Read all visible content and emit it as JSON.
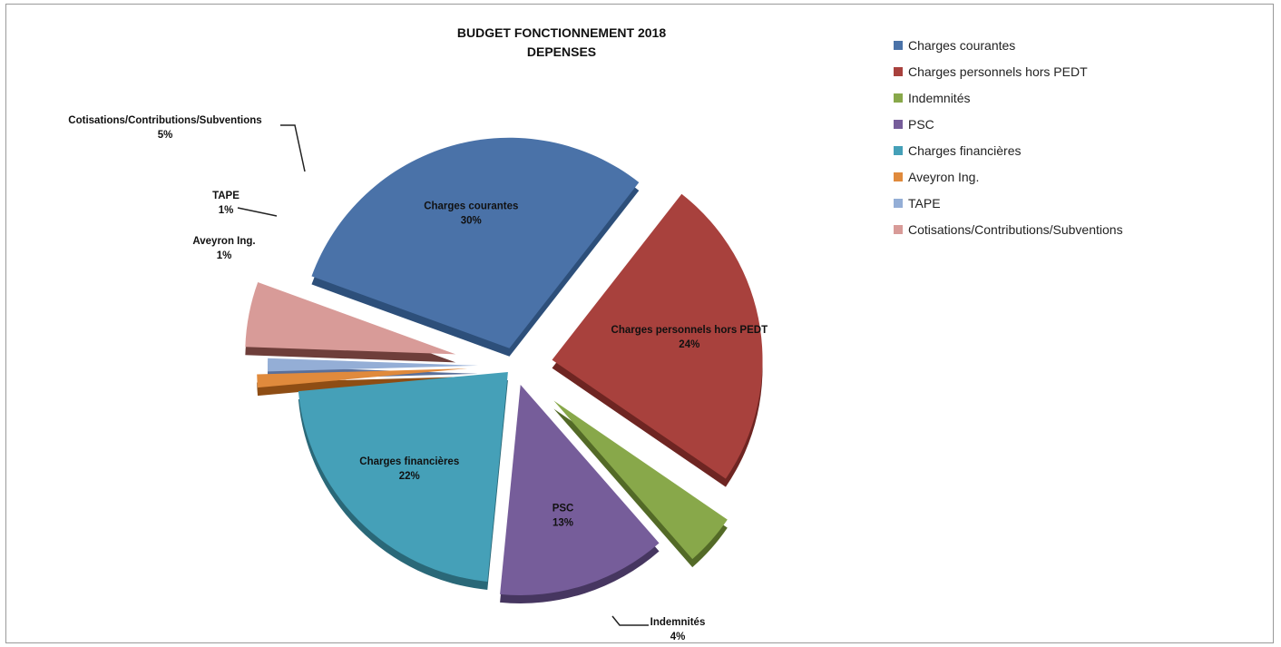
{
  "chart_data": {
    "type": "pie",
    "title_lines": [
      "BUDGET FONCTIONNEMENT 2018",
      "DEPENSES"
    ],
    "slices": [
      {
        "name": "Charges courantes",
        "value": 30,
        "label": "30%",
        "color": "#4a72a8",
        "shade": "#2d4f7a"
      },
      {
        "name": "Charges personnels hors PEDT",
        "value": 24,
        "label": "24%",
        "color": "#a8413d",
        "shade": "#6e2522"
      },
      {
        "name": "Indemnités",
        "value": 4,
        "label": "4%",
        "color": "#88a84a",
        "shade": "#536a27"
      },
      {
        "name": "PSC",
        "value": 13,
        "label": "13%",
        "color": "#765d9a",
        "shade": "#463660"
      },
      {
        "name": "Charges financières",
        "value": 22,
        "label": "22%",
        "color": "#45a0b8",
        "shade": "#2a6878"
      },
      {
        "name": "Aveyron Ing.",
        "value": 1,
        "label": "1%",
        "color": "#e08a3c",
        "shade": "#8e4d14"
      },
      {
        "name": "TAPE",
        "value": 1,
        "label": "1%",
        "color": "#94aed6",
        "shade": "#5a6f99"
      },
      {
        "name": "Cotisations/Contributions/Subventions",
        "value": 5,
        "label": "5%",
        "color": "#d89b98",
        "shade": "#6e3e3a"
      }
    ],
    "legend_position": "right"
  }
}
